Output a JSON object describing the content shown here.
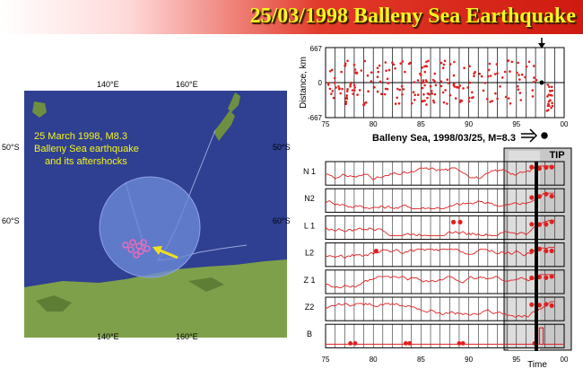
{
  "title": "25/03/1998 Balleny Sea Earthquake",
  "map": {
    "lon_ticks": [
      "140°E",
      "160°E"
    ],
    "lat_ticks": [
      "50°S",
      "60°S"
    ],
    "annotation": [
      "25 March 1998, M8.3",
      "Balleny Sea earthquake",
      "and its aftershocks"
    ],
    "colors": {
      "ocean": "#2f3f92",
      "land": "#7ea04a",
      "circle": "#6d8ad8",
      "arrow": "#f0e020",
      "aftershocks": "#e050a0"
    }
  },
  "distance_plot": {
    "ylabel": "Distance, km",
    "ytick_top": "667",
    "ytick_mid": "0",
    "ytick_bottom": "-667",
    "xticks": [
      "75",
      "80",
      "85",
      "90",
      "95",
      "00"
    ],
    "caption": "Balleny Sea, 1998/03/25, M=8.3"
  },
  "indicator_plot": {
    "rows": [
      "N 1",
      "N2",
      "L 1",
      "L2",
      "Z 1",
      "Z2",
      "B"
    ],
    "tip_label": "TIP",
    "xticks": [
      "75",
      "80",
      "85",
      "90",
      "95",
      "00"
    ],
    "xlabel": "Time",
    "colors": {
      "series": "#e02020",
      "tip_band": "#c8c8c8",
      "alarm": "#d8d8d8"
    }
  }
}
